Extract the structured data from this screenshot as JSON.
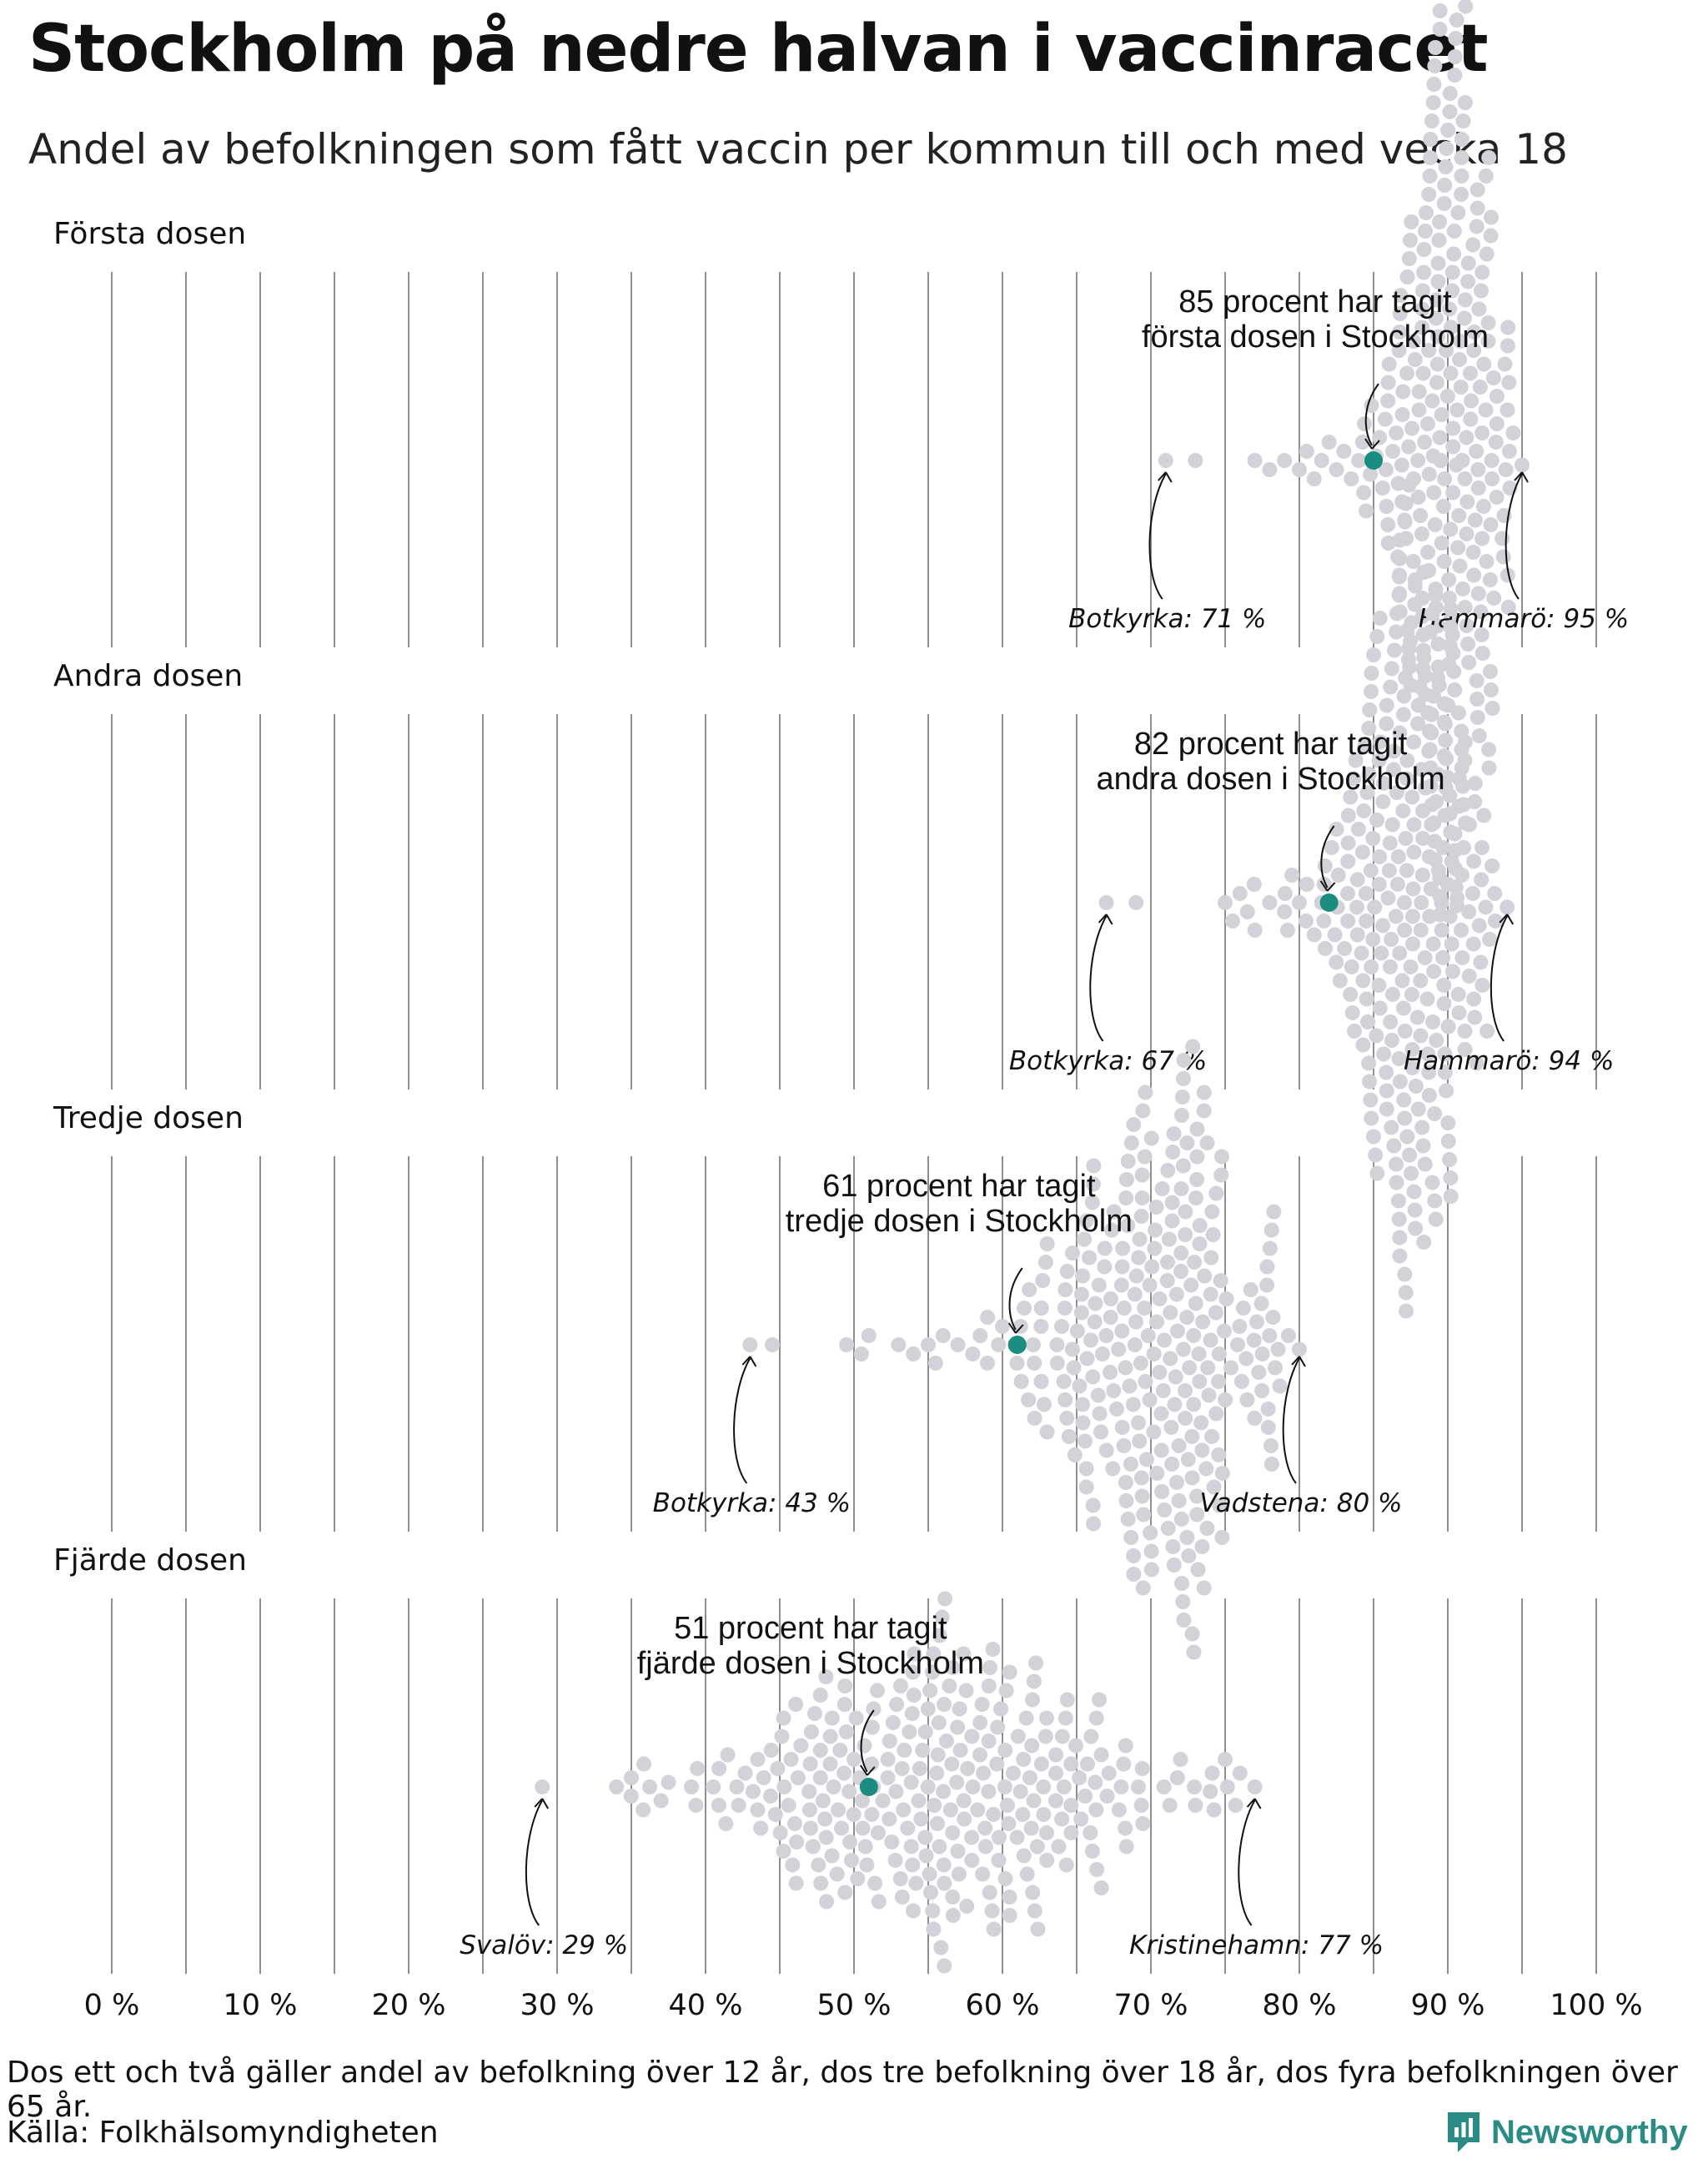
{
  "title": "Stockholm på nedre halvan i vaccinracet",
  "subtitle": "Andel av befolkningen som fått vaccin per kommun till och med vecka 18",
  "footnote": "Dos ett och två gäller andel av befolkning över 12 år, dos tre befolkning över 18 år, dos fyra befolkningen över 65 år.",
  "source": "Källa: Folkhälsomyndigheten",
  "brand": "Newsworthy",
  "colors": {
    "dot": "#d3d2d8",
    "highlight": "#1a8c80",
    "gridline": "#8f8f8f",
    "text": "#111111",
    "brand": "#2a8c84"
  },
  "chart_data": {
    "type": "scatter",
    "subtype": "beeswarm",
    "xlim": [
      0,
      100
    ],
    "x_ticks": [
      0,
      10,
      20,
      30,
      40,
      50,
      60,
      70,
      80,
      90,
      100
    ],
    "x_tick_labels": [
      "0 %",
      "10 %",
      "20 %",
      "30 %",
      "40 %",
      "50 %",
      "60 %",
      "70 %",
      "80 %",
      "90 %",
      "100 %"
    ],
    "minor_gridlines": [
      5,
      15,
      25,
      35,
      45,
      55,
      65,
      75,
      85,
      95
    ],
    "grid": true,
    "panels": [
      {
        "name": "Första dosen",
        "highlight": {
          "name": "Stockholm",
          "value": 85
        },
        "annotation": [
          "85 procent har tagit",
          "första dosen i Stockholm"
        ],
        "min": {
          "name": "Botkyrka",
          "value": 71,
          "label": "Botkyrka: 71 %"
        },
        "max": {
          "name": "Hammarö",
          "value": 95,
          "label": "Hammarö: 95 %"
        },
        "distribution": {
          "count": 290,
          "center": 90,
          "spread": 2.3,
          "tail_values": [
            71,
            73,
            77,
            78,
            79,
            80,
            80.5,
            81,
            81.5,
            82,
            82.5,
            83,
            83.5,
            84,
            84.5
          ]
        }
      },
      {
        "name": "Andra dosen",
        "highlight": {
          "name": "Stockholm",
          "value": 82
        },
        "annotation": [
          "82 procent har tagit",
          "andra dosen i Stockholm"
        ],
        "min": {
          "name": "Botkyrka",
          "value": 67,
          "label": "Botkyrka: 67 %"
        },
        "max": {
          "name": "Hammarö",
          "value": 94,
          "label": "Hammarö: 94 %"
        },
        "distribution": {
          "count": 290,
          "center": 87.5,
          "spread": 3.0,
          "tail_values": [
            67,
            69,
            75,
            75.5,
            76,
            76.5,
            77,
            78,
            79,
            79.5,
            80,
            80.5,
            81,
            81.5,
            82.5
          ]
        }
      },
      {
        "name": "Tredje dosen",
        "highlight": {
          "name": "Stockholm",
          "value": 61
        },
        "annotation": [
          "61 procent har tagit",
          "tredje dosen i Stockholm"
        ],
        "min": {
          "name": "Botkyrka",
          "value": 43,
          "label": "Botkyrka: 43 %"
        },
        "max": {
          "name": "Vadstena",
          "value": 80,
          "label": "Vadstena: 80 %"
        },
        "distribution": {
          "count": 290,
          "center": 70,
          "spread": 4.3,
          "tail_values": [
            43,
            44.5,
            49.5,
            50.5,
            51,
            53,
            54,
            55,
            55.5,
            56,
            57,
            58,
            58.5,
            59,
            60
          ]
        }
      },
      {
        "name": "Fjärde dosen",
        "highlight": {
          "name": "Stockholm",
          "value": 51
        },
        "annotation": [
          "51 procent har tagit",
          "fjärde dosen i Stockholm"
        ],
        "min": {
          "name": "Svalöv",
          "value": 29,
          "label": "Svalöv: 29 %"
        },
        "max": {
          "name": "Kristinehamn",
          "value": 77,
          "label": "Kristinehamn: 77 %"
        },
        "distribution": {
          "count": 290,
          "center": 56,
          "spread": 8.0,
          "tail_values": [
            29,
            34,
            35,
            35.8,
            37,
            37.5,
            72,
            73,
            74,
            75,
            76,
            77
          ]
        }
      }
    ]
  }
}
